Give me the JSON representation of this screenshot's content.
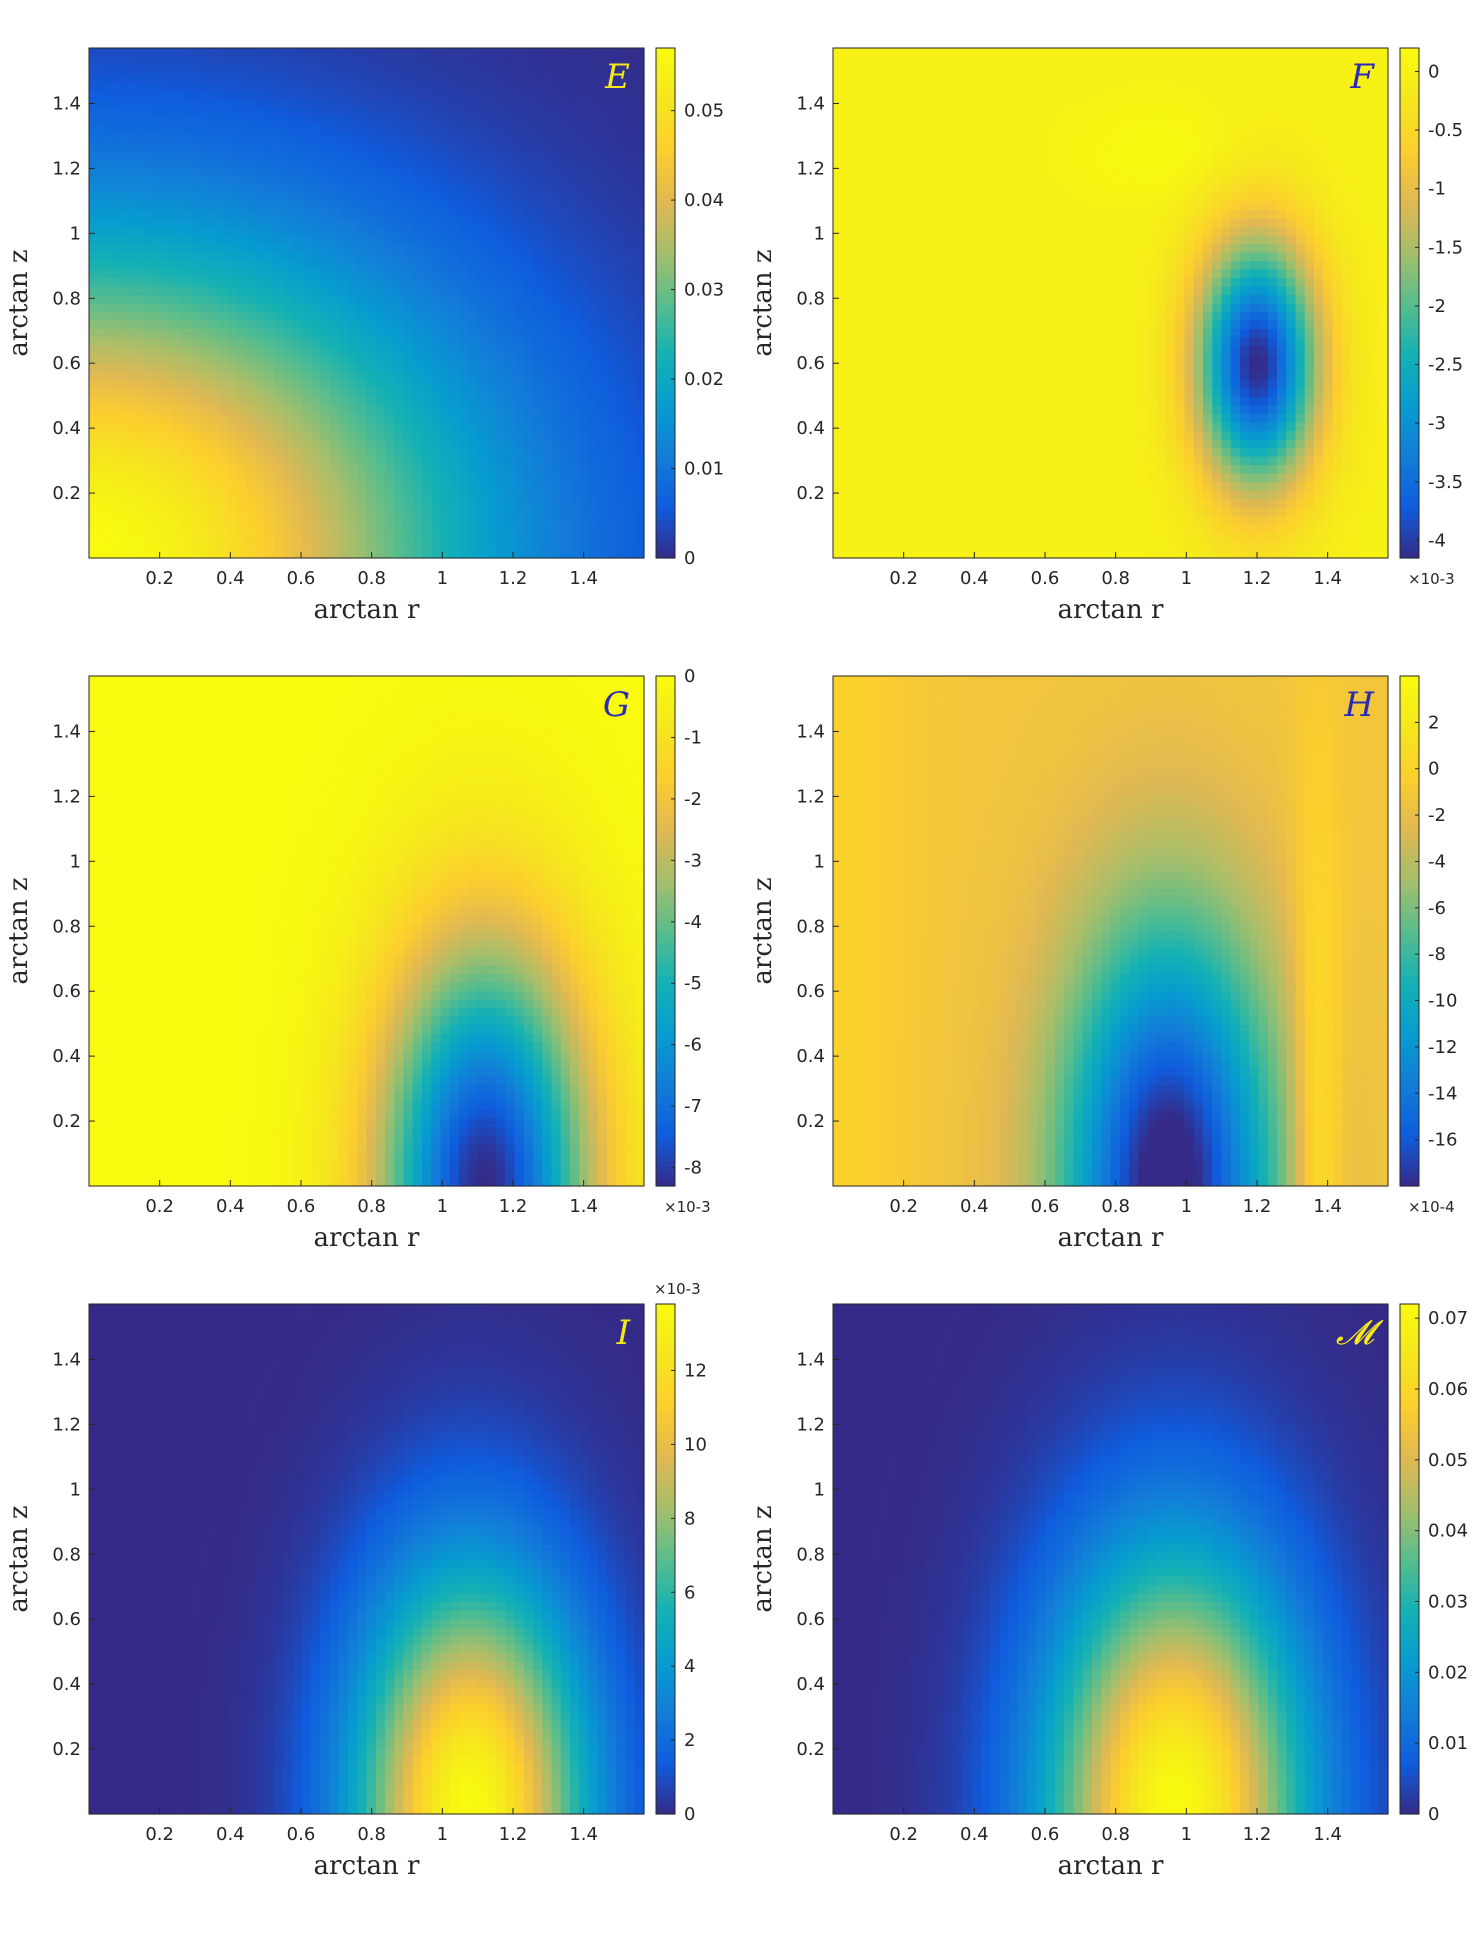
{
  "chart_data": [
    {
      "type": "heatmap",
      "title": "E",
      "title_color": "#f7e81c",
      "xlabel": "arctan r",
      "ylabel": "arctan z",
      "xlim": [
        0,
        1.5708
      ],
      "ylim": [
        0,
        1.5708
      ],
      "xticks": [
        "0.2",
        "0.4",
        "0.6",
        "0.8",
        "1",
        "1.2",
        "1.4"
      ],
      "yticks": [
        "0.2",
        "0.4",
        "0.6",
        "0.8",
        "1",
        "1.2",
        "1.4"
      ],
      "colorbar": {
        "range": [
          0,
          0.057
        ],
        "ticks": [
          0,
          0.01,
          0.02,
          0.03,
          0.04,
          0.05
        ],
        "tick_labels": [
          "0",
          "0.01",
          "0.02",
          "0.03",
          "0.04",
          "0.05"
        ],
        "multiplier": ""
      },
      "field": {
        "kind": "decay_corner",
        "peak": 0.057,
        "r_scale": 1.05,
        "z_scale": 0.95
      }
    },
    {
      "type": "heatmap",
      "title": "F",
      "title_color": "#2a2ab8",
      "xlabel": "arctan r",
      "ylabel": "arctan z",
      "xlim": [
        0,
        1.5708
      ],
      "ylim": [
        0,
        1.5708
      ],
      "xticks": [
        "0.2",
        "0.4",
        "0.6",
        "0.8",
        "1",
        "1.2",
        "1.4"
      ],
      "yticks": [
        "0.2",
        "0.4",
        "0.6",
        "0.8",
        "1",
        "1.2",
        "1.4"
      ],
      "colorbar": {
        "range": [
          -4.15,
          0.2
        ],
        "ticks": [
          0,
          -0.5,
          -1,
          -1.5,
          -2,
          -2.5,
          -3,
          -3.5,
          -4
        ],
        "tick_labels": [
          "0",
          "-0.5",
          "-1",
          "-1.5",
          "-2",
          "-2.5",
          "-3",
          "-3.5",
          "-4"
        ],
        "multiplier": "×10-3"
      },
      "field": {
        "kind": "blob",
        "peak": -4.15,
        "r0": 1.2,
        "z0": 0.6,
        "sr": 0.17,
        "sz": 0.38,
        "ridge": 0.18,
        "ridge_r": 0.95,
        "ridge_z": 1.25
      }
    },
    {
      "type": "heatmap",
      "title": "G",
      "title_color": "#2a2ab8",
      "xlabel": "arctan r",
      "ylabel": "arctan z",
      "xlim": [
        0,
        1.5708
      ],
      "ylim": [
        0,
        1.5708
      ],
      "xticks": [
        "0.2",
        "0.4",
        "0.6",
        "0.8",
        "1",
        "1.2",
        "1.4"
      ],
      "yticks": [
        "0.2",
        "0.4",
        "0.6",
        "0.8",
        "1",
        "1.2",
        "1.4"
      ],
      "colorbar": {
        "range": [
          -8.3,
          0
        ],
        "ticks": [
          0,
          -1,
          -2,
          -3,
          -4,
          -5,
          -6,
          -7,
          -8
        ],
        "tick_labels": [
          "0",
          "-1",
          "-2",
          "-3",
          "-4",
          "-5",
          "-6",
          "-7",
          "-8"
        ],
        "multiplier": "×10-3"
      },
      "field": {
        "kind": "blob",
        "peak": -8.3,
        "r0": 1.12,
        "z0": 0.0,
        "sr": 0.3,
        "sz": 0.75,
        "ridge": 0,
        "ridge_r": 0,
        "ridge_z": 0
      }
    },
    {
      "type": "heatmap",
      "title": "H",
      "title_color": "#2a2ab8",
      "xlabel": "arctan r",
      "ylabel": "arctan z",
      "xlim": [
        0,
        1.5708
      ],
      "ylim": [
        0,
        1.5708
      ],
      "xticks": [
        "0.2",
        "0.4",
        "0.6",
        "0.8",
        "1",
        "1.2",
        "1.4"
      ],
      "yticks": [
        "0.2",
        "0.4",
        "0.6",
        "0.8",
        "1",
        "1.2",
        "1.4"
      ],
      "colorbar": {
        "range": [
          -18,
          4
        ],
        "ticks": [
          2,
          0,
          -2,
          -4,
          -6,
          -8,
          -10,
          -12,
          -14,
          -16
        ],
        "tick_labels": [
          "2",
          "0",
          "-2",
          "-4",
          "-6",
          "-8",
          "-10",
          "-12",
          "-14",
          "-16"
        ],
        "multiplier": "×10-4"
      },
      "field": {
        "kind": "blob_ridge",
        "peak": -18,
        "r0": 0.95,
        "z0": 0.0,
        "sr": 0.3,
        "sz": 0.8,
        "ridge": 4,
        "ridge_r": 1.37,
        "ridge_w": 0.07
      }
    },
    {
      "type": "heatmap",
      "title": "I",
      "title_color": "#f7e81c",
      "xlabel": "arctan r",
      "ylabel": "arctan z",
      "xlim": [
        0,
        1.5708
      ],
      "ylim": [
        0,
        1.5708
      ],
      "xticks": [
        "0.2",
        "0.4",
        "0.6",
        "0.8",
        "1",
        "1.2",
        "1.4"
      ],
      "yticks": [
        "0.2",
        "0.4",
        "0.6",
        "0.8",
        "1",
        "1.2",
        "1.4"
      ],
      "colorbar": {
        "range": [
          0,
          13.8
        ],
        "ticks": [
          0,
          2,
          4,
          6,
          8,
          10,
          12
        ],
        "tick_labels": [
          "0",
          "2",
          "4",
          "6",
          "8",
          "10",
          "12"
        ],
        "multiplier": "×10-3"
      },
      "field": {
        "kind": "blob",
        "peak": 13.8,
        "r0": 1.08,
        "z0": 0.0,
        "sr": 0.32,
        "sz": 0.72,
        "ridge": 0,
        "ridge_r": 0,
        "ridge_z": 0
      }
    },
    {
      "type": "heatmap",
      "title": "𝓜",
      "title_color": "#f7e81c",
      "xlabel": "arctan r",
      "ylabel": "arctan z",
      "xlim": [
        0,
        1.5708
      ],
      "ylim": [
        0,
        1.5708
      ],
      "xticks": [
        "0.2",
        "0.4",
        "0.6",
        "0.8",
        "1",
        "1.2",
        "1.4"
      ],
      "yticks": [
        "0.2",
        "0.4",
        "0.6",
        "0.8",
        "1",
        "1.2",
        "1.4"
      ],
      "colorbar": {
        "range": [
          0,
          0.072
        ],
        "ticks": [
          0,
          0.01,
          0.02,
          0.03,
          0.04,
          0.05,
          0.06,
          0.07
        ],
        "tick_labels": [
          "0",
          "0.01",
          "0.02",
          "0.03",
          "0.04",
          "0.05",
          "0.06",
          "0.07"
        ],
        "multiplier": ""
      },
      "field": {
        "kind": "blob",
        "peak": 0.072,
        "r0": 0.97,
        "z0": 0.0,
        "sr": 0.36,
        "sz": 0.78,
        "ridge": 0,
        "ridge_r": 0,
        "ridge_z": 0
      }
    }
  ]
}
